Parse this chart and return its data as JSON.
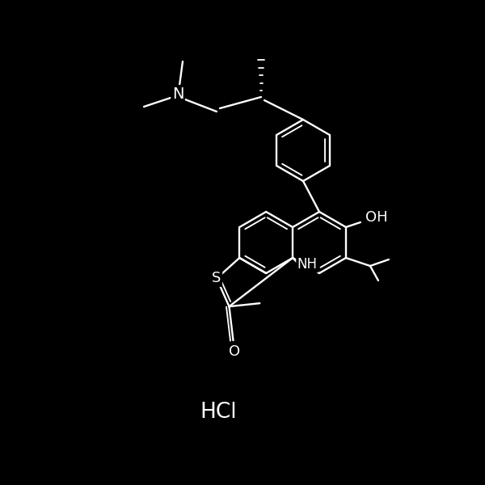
{
  "bg": "#000000",
  "fg": "#ffffff",
  "figsize": [
    6.0,
    6.0
  ],
  "dpi": 100,
  "lw": 1.7,
  "lw2": 1.35,
  "r": 38,
  "hcl_text": "HCl",
  "oh_text": "OH",
  "nh_text": "NH",
  "s_text": "S",
  "o_text": "O",
  "n_text": "N"
}
